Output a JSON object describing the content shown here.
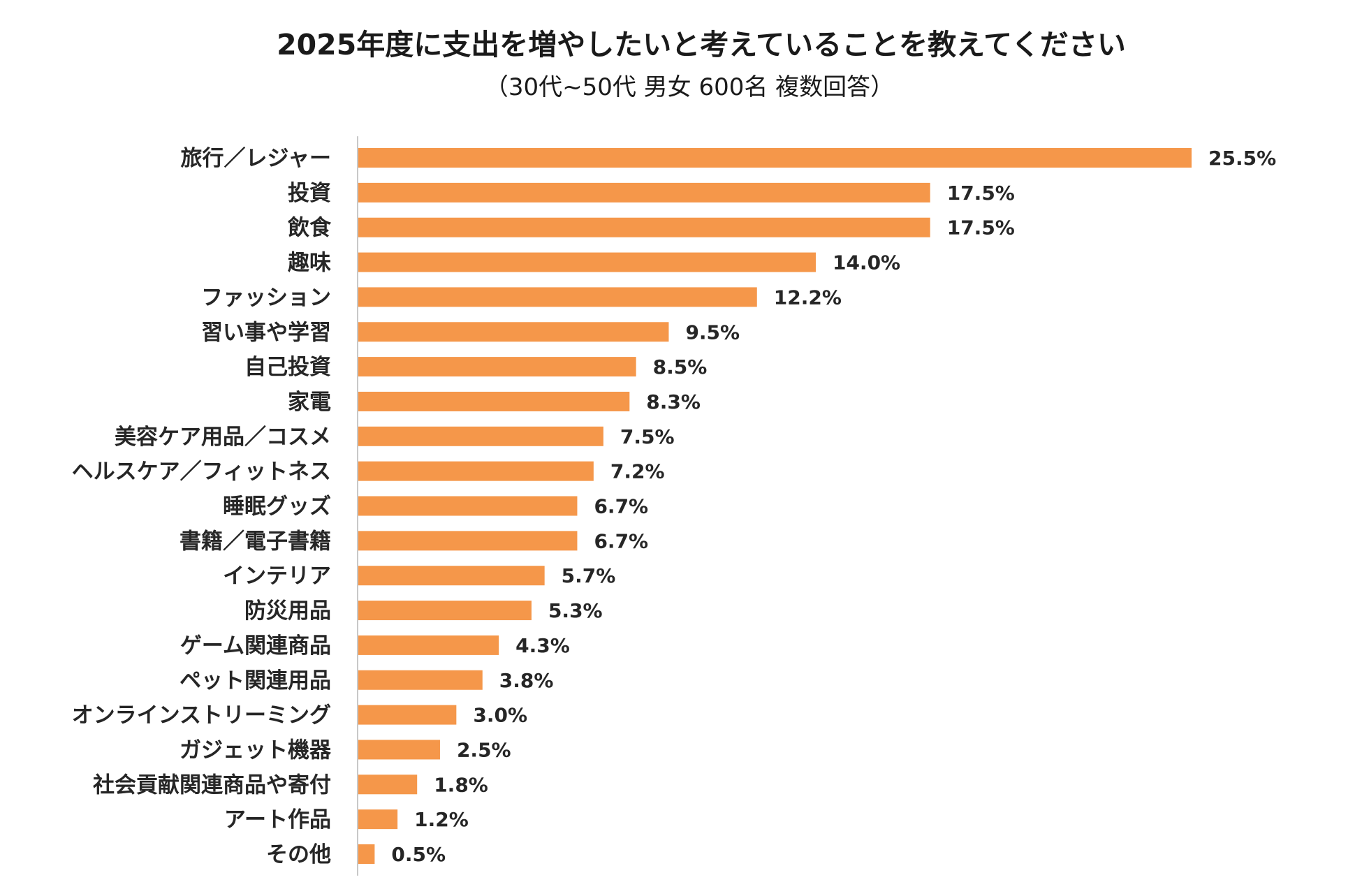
{
  "colors": {
    "bar": "#F5974A",
    "axis": "#c8c8c8",
    "text": "#262626"
  },
  "chart_data": {
    "type": "bar",
    "orientation": "horizontal",
    "title": "2025年度に支出を増やしたいと考えていることを教えてください",
    "subtitle": "（30代~50代 男女 600名 複数回答）",
    "xlim": [
      0,
      25.5
    ],
    "unit": "%",
    "categories": [
      "旅行／レジャー",
      "投資",
      "飲食",
      "趣味",
      "ファッション",
      "習い事や学習",
      "自己投資",
      "家電",
      "美容ケア用品／コスメ",
      "ヘルスケア／フィットネス",
      "睡眠グッズ",
      "書籍／電子書籍",
      "インテリア",
      "防災用品",
      "ゲーム関連商品",
      "ペット関連用品",
      "オンラインストリーミング",
      "ガジェット機器",
      "社会貢献関連商品や寄付",
      "アート作品",
      "その他"
    ],
    "values": [
      25.5,
      17.5,
      17.5,
      14.0,
      12.2,
      9.5,
      8.5,
      8.3,
      7.5,
      7.2,
      6.7,
      6.7,
      5.7,
      5.3,
      4.3,
      3.8,
      3.0,
      2.5,
      1.8,
      1.2,
      0.5
    ],
    "value_labels": [
      "25.5%",
      "17.5%",
      "17.5%",
      "14.0%",
      "12.2%",
      "9.5%",
      "8.5%",
      "8.3%",
      "7.5%",
      "7.2%",
      "6.7%",
      "6.7%",
      "5.7%",
      "5.3%",
      "4.3%",
      "3.8%",
      "3.0%",
      "2.5%",
      "1.8%",
      "1.2%",
      "0.5%"
    ]
  }
}
